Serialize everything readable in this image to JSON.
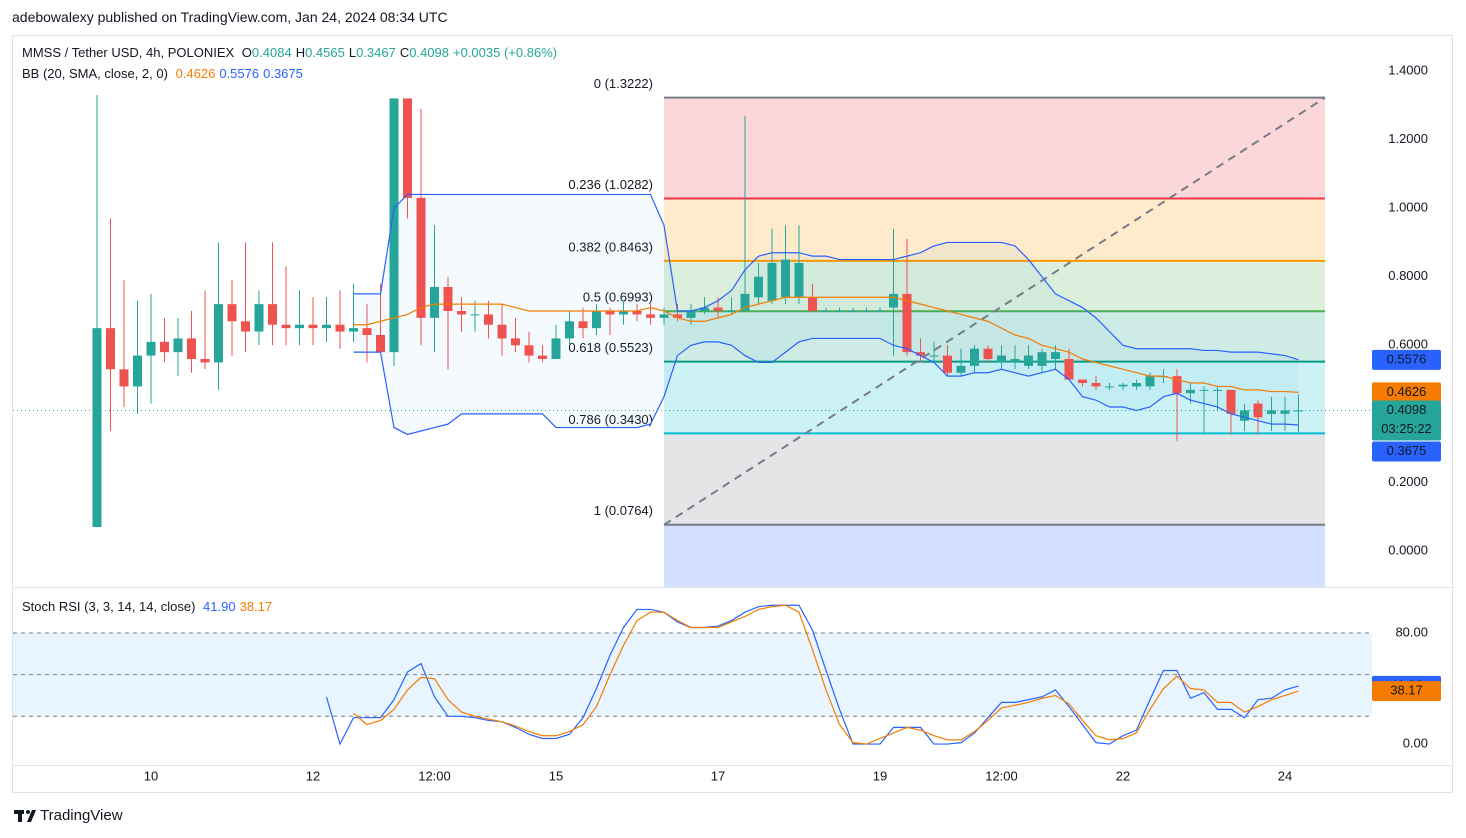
{
  "header": {
    "byline": "adebowalexy published on TradingView.com, Jan 24, 2024 08:34 UTC"
  },
  "footer": {
    "brand": "TradingView"
  },
  "chart_data": [
    {
      "type": "candlestick",
      "title": "MMSS / Tether USD, 4h, POLONIEX",
      "ohlc_letters": [
        "O",
        "H",
        "L",
        "C"
      ],
      "change": "+0.0035 (+0.86%)",
      "indicator": "BB (20, SMA, close, 2, 0)",
      "countdown": "03:25:22",
      "up_color": "#26a69a",
      "down_color": "#ef5350",
      "last_color": "#26a69a",
      "categories": [
        null,
        null,
        null,
        null,
        "10",
        null,
        null,
        null,
        null,
        null,
        null,
        null,
        null,
        null,
        null,
        null,
        "12",
        null,
        null,
        null,
        null,
        null,
        null,
        null,
        null,
        "12:00",
        null,
        null,
        null,
        null,
        null,
        null,
        null,
        null,
        "15",
        null,
        null,
        null,
        null,
        null,
        null,
        null,
        null,
        null,
        null,
        null,
        "17",
        null,
        null,
        null,
        null,
        null,
        null,
        null,
        null,
        null,
        null,
        null,
        "19",
        null,
        null,
        null,
        null,
        null,
        null,
        null,
        null,
        "12:00",
        null,
        null,
        null,
        null,
        null,
        null,
        null,
        null,
        "22",
        null,
        null,
        null,
        null,
        null,
        null,
        null,
        null,
        null,
        null,
        null,
        "24",
        null
      ],
      "open": [
        0.07,
        0.65,
        0.53,
        0.48,
        0.57,
        0.61,
        0.58,
        0.62,
        0.56,
        0.55,
        0.72,
        0.67,
        0.64,
        0.72,
        0.66,
        0.65,
        0.66,
        0.65,
        0.66,
        0.64,
        0.65,
        0.63,
        0.58,
        1.32,
        1.03,
        0.68,
        0.77,
        0.7,
        0.69,
        0.69,
        0.66,
        0.62,
        0.6,
        0.57,
        0.56,
        0.62,
        0.67,
        0.65,
        0.7,
        0.69,
        0.7,
        0.69,
        0.68,
        0.69,
        0.68,
        0.7,
        0.71,
        0.7,
        0.7,
        0.74,
        0.73,
        0.74,
        0.74,
        0.74,
        0.7,
        0.7,
        0.7,
        0.7,
        0.7,
        0.71,
        0.75,
        0.58,
        0.57,
        0.57,
        0.52,
        0.54,
        0.59,
        0.55,
        0.55,
        0.54,
        0.54,
        0.56,
        0.56,
        0.5,
        0.49,
        0.48,
        0.48,
        0.48,
        0.48,
        0.51,
        0.51,
        0.46,
        0.47,
        0.47,
        0.47,
        0.38,
        0.43,
        0.4,
        0.4,
        0.4084
      ],
      "high": [
        1.33,
        0.97,
        0.79,
        0.73,
        0.75,
        0.68,
        0.68,
        0.7,
        0.76,
        0.9,
        0.79,
        0.9,
        0.76,
        0.9,
        0.83,
        0.76,
        0.74,
        0.74,
        0.76,
        0.78,
        0.72,
        0.78,
        1.32,
        1.32,
        1.29,
        0.95,
        0.8,
        0.74,
        0.73,
        0.73,
        0.72,
        0.68,
        0.64,
        0.6,
        0.66,
        0.7,
        0.71,
        0.72,
        0.71,
        0.73,
        0.72,
        0.72,
        0.71,
        0.72,
        0.72,
        0.74,
        0.74,
        0.74,
        1.27,
        0.84,
        0.94,
        0.95,
        0.95,
        0.78,
        0.71,
        0.71,
        0.71,
        0.71,
        0.71,
        0.94,
        0.91,
        0.62,
        0.61,
        0.6,
        0.59,
        0.6,
        0.6,
        0.6,
        0.6,
        0.6,
        0.59,
        0.6,
        0.59,
        0.5,
        0.51,
        0.49,
        0.49,
        0.5,
        0.52,
        0.53,
        0.53,
        0.49,
        0.48,
        0.48,
        0.47,
        0.43,
        0.44,
        0.45,
        0.45,
        0.4565
      ],
      "low": [
        0.07,
        0.35,
        0.42,
        0.4,
        0.43,
        0.55,
        0.51,
        0.52,
        0.53,
        0.47,
        0.57,
        0.58,
        0.6,
        0.6,
        0.6,
        0.6,
        0.6,
        0.61,
        0.59,
        0.61,
        0.55,
        0.59,
        0.54,
        0.97,
        0.6,
        0.58,
        0.53,
        0.64,
        0.64,
        0.62,
        0.57,
        0.58,
        0.55,
        0.55,
        0.56,
        0.6,
        0.62,
        0.63,
        0.63,
        0.66,
        0.67,
        0.66,
        0.66,
        0.67,
        0.66,
        0.69,
        0.68,
        0.69,
        0.7,
        0.72,
        0.72,
        0.72,
        0.72,
        0.7,
        0.7,
        0.7,
        0.7,
        0.7,
        0.7,
        0.57,
        0.57,
        0.55,
        0.55,
        0.51,
        0.51,
        0.52,
        0.55,
        0.53,
        0.53,
        0.53,
        0.52,
        0.53,
        0.5,
        0.48,
        0.47,
        0.47,
        0.47,
        0.47,
        0.47,
        0.49,
        0.32,
        0.43,
        0.34,
        0.41,
        0.34,
        0.35,
        0.34,
        0.35,
        0.35,
        0.3467
      ],
      "close": [
        0.65,
        0.53,
        0.48,
        0.57,
        0.61,
        0.58,
        0.62,
        0.56,
        0.55,
        0.72,
        0.67,
        0.64,
        0.72,
        0.66,
        0.65,
        0.66,
        0.65,
        0.66,
        0.64,
        0.65,
        0.63,
        0.58,
        1.32,
        1.03,
        0.68,
        0.77,
        0.7,
        0.69,
        0.69,
        0.66,
        0.62,
        0.6,
        0.57,
        0.56,
        0.62,
        0.67,
        0.65,
        0.7,
        0.69,
        0.7,
        0.69,
        0.68,
        0.69,
        0.68,
        0.7,
        0.71,
        0.7,
        0.7,
        0.75,
        0.8,
        0.84,
        0.85,
        0.84,
        0.7,
        0.7,
        0.7,
        0.7,
        0.7,
        0.7,
        0.75,
        0.58,
        0.57,
        0.57,
        0.52,
        0.54,
        0.59,
        0.56,
        0.57,
        0.56,
        0.57,
        0.58,
        0.58,
        0.5,
        0.49,
        0.48,
        0.48,
        0.485,
        0.49,
        0.51,
        0.51,
        0.46,
        0.47,
        0.47,
        0.47,
        0.4,
        0.41,
        0.39,
        0.41,
        0.41,
        0.4098
      ],
      "series": [
        {
          "color": "#f57c00",
          "values": [
            null,
            null,
            null,
            null,
            null,
            null,
            null,
            null,
            null,
            null,
            null,
            null,
            null,
            null,
            null,
            null,
            null,
            null,
            null,
            0.66,
            0.66,
            0.67,
            0.68,
            0.69,
            0.71,
            0.72,
            0.72,
            0.72,
            0.72,
            0.72,
            0.72,
            0.71,
            0.7,
            0.7,
            0.7,
            0.7,
            0.7,
            0.7,
            0.7,
            0.7,
            0.7,
            0.71,
            0.7,
            0.68,
            0.67,
            0.67,
            0.68,
            0.69,
            0.71,
            0.72,
            0.73,
            0.74,
            0.74,
            0.74,
            0.74,
            0.74,
            0.74,
            0.74,
            0.74,
            0.74,
            0.73,
            0.72,
            0.71,
            0.7,
            0.69,
            0.68,
            0.67,
            0.65,
            0.63,
            0.62,
            0.6,
            0.59,
            0.58,
            0.56,
            0.55,
            0.54,
            0.53,
            0.52,
            0.51,
            0.51,
            0.5,
            0.49,
            0.49,
            0.48,
            0.48,
            0.47,
            0.47,
            0.465,
            0.465,
            0.4626
          ]
        },
        {
          "color": "#2962ff",
          "values": [
            null,
            null,
            null,
            null,
            null,
            null,
            null,
            null,
            null,
            null,
            null,
            null,
            null,
            null,
            null,
            null,
            null,
            null,
            null,
            0.75,
            0.75,
            0.75,
            1.0,
            1.04,
            1.04,
            1.04,
            1.04,
            1.04,
            1.04,
            1.04,
            1.04,
            1.04,
            1.04,
            1.04,
            1.04,
            1.04,
            1.04,
            1.04,
            1.04,
            1.04,
            1.04,
            1.04,
            0.95,
            0.7,
            0.7,
            0.71,
            0.73,
            0.76,
            0.82,
            0.86,
            0.87,
            0.87,
            0.87,
            0.86,
            0.86,
            0.85,
            0.85,
            0.85,
            0.85,
            0.85,
            0.86,
            0.87,
            0.89,
            0.9,
            0.9,
            0.9,
            0.9,
            0.9,
            0.89,
            0.85,
            0.8,
            0.75,
            0.73,
            0.71,
            0.68,
            0.64,
            0.6,
            0.59,
            0.59,
            0.59,
            0.59,
            0.59,
            0.585,
            0.585,
            0.58,
            0.58,
            0.58,
            0.575,
            0.57,
            0.5576
          ]
        },
        {
          "color": "#2962ff",
          "values": [
            null,
            null,
            null,
            null,
            null,
            null,
            null,
            null,
            null,
            null,
            null,
            null,
            null,
            null,
            null,
            null,
            null,
            null,
            null,
            0.58,
            0.58,
            0.58,
            0.36,
            0.34,
            0.35,
            0.36,
            0.37,
            0.4,
            0.4,
            0.4,
            0.4,
            0.4,
            0.4,
            0.4,
            0.36,
            0.36,
            0.36,
            0.36,
            0.36,
            0.36,
            0.36,
            0.37,
            0.45,
            0.57,
            0.6,
            0.61,
            0.61,
            0.6,
            0.57,
            0.55,
            0.55,
            0.58,
            0.61,
            0.62,
            0.62,
            0.62,
            0.62,
            0.62,
            0.62,
            0.6,
            0.59,
            0.57,
            0.55,
            0.51,
            0.51,
            0.52,
            0.52,
            0.53,
            0.52,
            0.51,
            0.52,
            0.53,
            0.5,
            0.45,
            0.44,
            0.42,
            0.42,
            0.41,
            0.42,
            0.45,
            0.46,
            0.44,
            0.43,
            0.42,
            0.4,
            0.39,
            0.38,
            0.37,
            0.37,
            0.3675
          ]
        }
      ],
      "band_fill": "rgba(33,150,243,0.05)",
      "fib": {
        "levels": [
          {
            "value": 1.3222,
            "label": "0 (1.3222)",
            "color": "#787b86"
          },
          {
            "value": 1.0282,
            "label": "0.236 (1.0282)",
            "color": "#f23645",
            "fill": "rgba(242,54,69,0.2)"
          },
          {
            "value": 0.8463,
            "label": "0.382 (0.8463)",
            "color": "#ff9800",
            "fill": "rgba(255,152,0,0.2)"
          },
          {
            "value": 0.6993,
            "label": "0.5 (0.6993)",
            "color": "#4caf50",
            "fill": "rgba(76,175,80,0.2)"
          },
          {
            "value": 0.5523,
            "label": "0.618 (0.5523)",
            "color": "#089981",
            "fill": "rgba(8,153,129,0.2)"
          },
          {
            "value": 0.343,
            "label": "0.786 (0.3430)",
            "color": "#00bcd4",
            "fill": "rgba(0,188,212,0.2)"
          },
          {
            "value": 0.0764,
            "label": "1 (0.0764)",
            "color": "#787b86",
            "fill": "rgba(120,123,134,0.2)"
          }
        ],
        "below_fill": "rgba(41,98,255,0.2)",
        "trend_color": "#787b86"
      },
      "ylim": [
        -0.105,
        1.505
      ],
      "yticks": [
        {
          "value": 0,
          "label": "0.0000"
        },
        {
          "value": 0.2,
          "label": "0.2000"
        },
        {
          "value": 0.4,
          "label": "0.4000"
        },
        {
          "value": 0.6,
          "label": "0.6000"
        },
        {
          "value": 0.8,
          "label": "0.8000"
        },
        {
          "value": 1,
          "label": "1.0000"
        },
        {
          "value": 1.2,
          "label": "1.2000"
        },
        {
          "value": 1.4,
          "label": "1.4000"
        }
      ],
      "grid": false
    },
    {
      "type": "line",
      "title": "Stoch RSI (3, 3, 14, 14, close)",
      "series": [
        {
          "color": "#2962ff",
          "values": [
            null,
            null,
            null,
            null,
            null,
            null,
            null,
            null,
            null,
            null,
            null,
            null,
            null,
            null,
            null,
            null,
            null,
            34,
            0,
            19,
            19,
            19,
            32,
            52,
            58,
            34,
            20,
            20,
            19,
            17,
            16,
            12,
            7,
            4,
            4,
            7,
            19,
            40,
            64,
            84,
            97,
            97,
            95,
            88,
            84,
            84,
            85,
            89,
            95,
            99,
            100,
            100,
            100,
            82,
            53,
            25,
            0,
            0,
            0,
            12,
            12,
            12,
            0,
            0,
            1,
            8,
            19,
            30,
            30,
            32,
            34,
            39,
            27,
            14,
            1,
            0,
            6,
            10,
            32,
            53,
            53,
            33,
            37,
            25,
            25,
            19,
            32,
            33,
            39,
            41.9
          ]
        },
        {
          "color": "#f57c00",
          "values": [
            null,
            null,
            null,
            null,
            null,
            null,
            null,
            null,
            null,
            null,
            null,
            null,
            null,
            null,
            null,
            null,
            null,
            null,
            null,
            22,
            14,
            17,
            25,
            39,
            48,
            47,
            32,
            23,
            20,
            18,
            16,
            13,
            9,
            6,
            6,
            9,
            14,
            27,
            50,
            71,
            89,
            95,
            95,
            89,
            84,
            84,
            84,
            88,
            92,
            97,
            99,
            100,
            95,
            68,
            39,
            14,
            1,
            0,
            4,
            8,
            12,
            10,
            6,
            3,
            3,
            9,
            17,
            26,
            28,
            30,
            33,
            35,
            29,
            17,
            6,
            3,
            4,
            8,
            25,
            40,
            49,
            40,
            39,
            30,
            30,
            23,
            27,
            32,
            35,
            38.17
          ]
        }
      ],
      "readouts": [
        {
          "value": 41.9,
          "label": "41.90",
          "color": "#2962ff"
        },
        {
          "value": 38.17,
          "label": "38.17",
          "color": "#f57c00"
        }
      ],
      "band": [
        20,
        80
      ],
      "band_fill": "rgba(33,150,243,0.1)",
      "hlines": [
        80,
        50,
        20
      ],
      "ylim": [
        -15.1,
        111
      ],
      "yticks": [
        {
          "value": 80,
          "label": "80.00"
        },
        {
          "value": 0,
          "label": "0.00"
        }
      ]
    }
  ]
}
